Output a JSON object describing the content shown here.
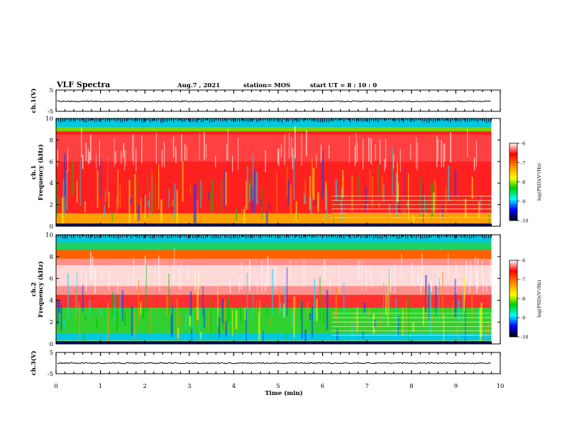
{
  "header": {
    "title": "VLF Spectra",
    "date": "Aug.7 , 2021",
    "station": "station= MOS",
    "start": "start UT = 8 : 10 : 0"
  },
  "colorbar": {
    "label": "log(PSD)(V²/Hz)",
    "ticks": [
      "-6",
      "-7",
      "-8",
      "-9",
      "-10"
    ],
    "colors": [
      "#ffffff",
      "#ff0000",
      "#ff8c00",
      "#ffff00",
      "#00d000",
      "#00ffff",
      "#0000ff",
      "#000000"
    ]
  },
  "chart_data": [
    {
      "type": "line",
      "name": "ch1-waveform",
      "ylabel": "ch.1(V)",
      "ylim": [
        -5,
        5
      ],
      "yticks": [
        "5",
        "-5"
      ],
      "xlim": [
        0,
        10
      ],
      "baseline": -0.3
    },
    {
      "type": "heatmap",
      "name": "ch1-spectrogram",
      "ylabel": "ch.1\nFrequency (kHz)",
      "ylim": [
        0,
        10
      ],
      "yticks": [
        "10",
        "8",
        "6",
        "4",
        "2",
        "0"
      ],
      "xlim": [
        0,
        10
      ],
      "data_end_min": 9.8,
      "value_range": [
        -10,
        -6
      ],
      "dominant_band_khz": [
        1,
        9
      ],
      "dominant_level": -6.5
    },
    {
      "type": "heatmap",
      "name": "ch2-spectrogram",
      "ylabel": "ch.2\nFrequency (kHz)",
      "ylim": [
        0,
        10
      ],
      "yticks": [
        "10",
        "8",
        "6",
        "4",
        "2",
        "0"
      ],
      "xlim": [
        0,
        10
      ],
      "data_end_min": 9.8,
      "value_range": [
        -10,
        -6
      ],
      "dominant_band_khz": [
        4.5,
        8
      ],
      "dominant_level": -6.2
    },
    {
      "type": "line",
      "name": "ch3-waveform",
      "ylabel": "ch.3(V)",
      "ylim": [
        -5,
        5
      ],
      "yticks": [
        "5",
        "-5"
      ],
      "xlim": [
        0,
        10
      ],
      "baseline": 0,
      "xlabel": "Time (min)",
      "xticks": [
        "0",
        "1",
        "2",
        "3",
        "4",
        "5",
        "6",
        "7",
        "8",
        "9",
        "10"
      ]
    }
  ]
}
